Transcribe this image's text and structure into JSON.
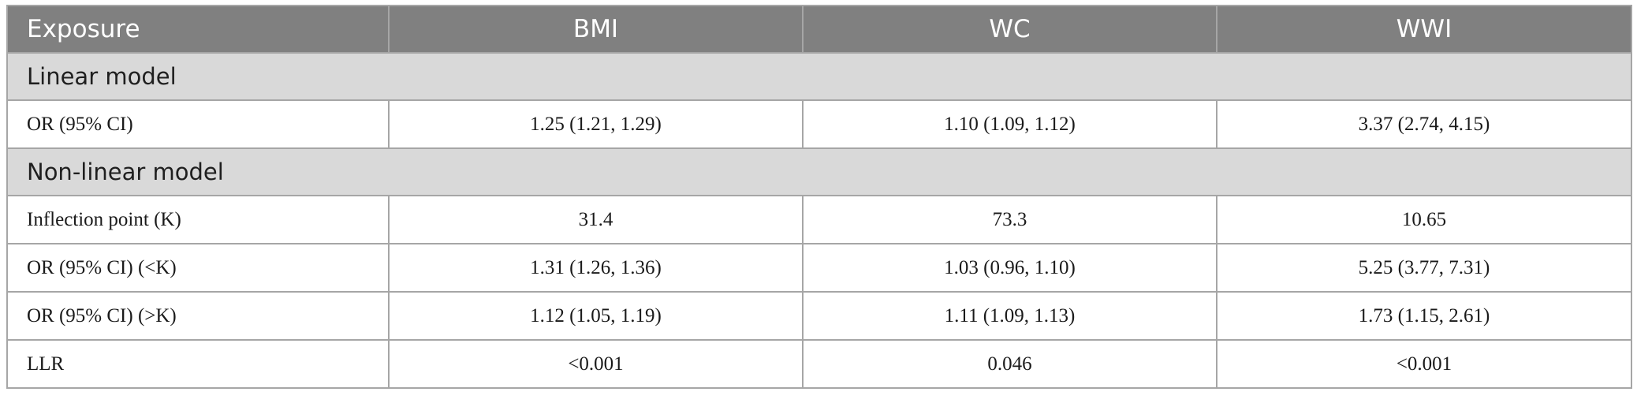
{
  "header": {
    "col0": "Exposure",
    "col1": "BMI",
    "col2": "WC",
    "col3": "WWI"
  },
  "sections": [
    {
      "title": "Linear model",
      "rows": [
        {
          "label": "OR (95% CI)",
          "bmi": "1.25 (1.21, 1.29)",
          "wc": "1.10 (1.09, 1.12)",
          "wwi": "3.37 (2.74, 4.15)"
        }
      ]
    },
    {
      "title": "Non-linear model",
      "rows": [
        {
          "label": "Inflection point (K)",
          "bmi": "31.4",
          "wc": "73.3",
          "wwi": "10.65"
        },
        {
          "label": "OR (95% CI) (<K)",
          "bmi": "1.31 (1.26, 1.36)",
          "wc": "1.03 (0.96, 1.10)",
          "wwi": "5.25 (3.77, 7.31)"
        },
        {
          "label": "OR (95% CI) (>K)",
          "bmi": "1.12 (1.05, 1.19)",
          "wc": "1.11 (1.09, 1.13)",
          "wwi": "1.73 (1.15, 2.61)"
        },
        {
          "label": "LLR",
          "bmi": "<0.001",
          "wc": "0.046",
          "wwi": "<0.001"
        }
      ]
    }
  ]
}
